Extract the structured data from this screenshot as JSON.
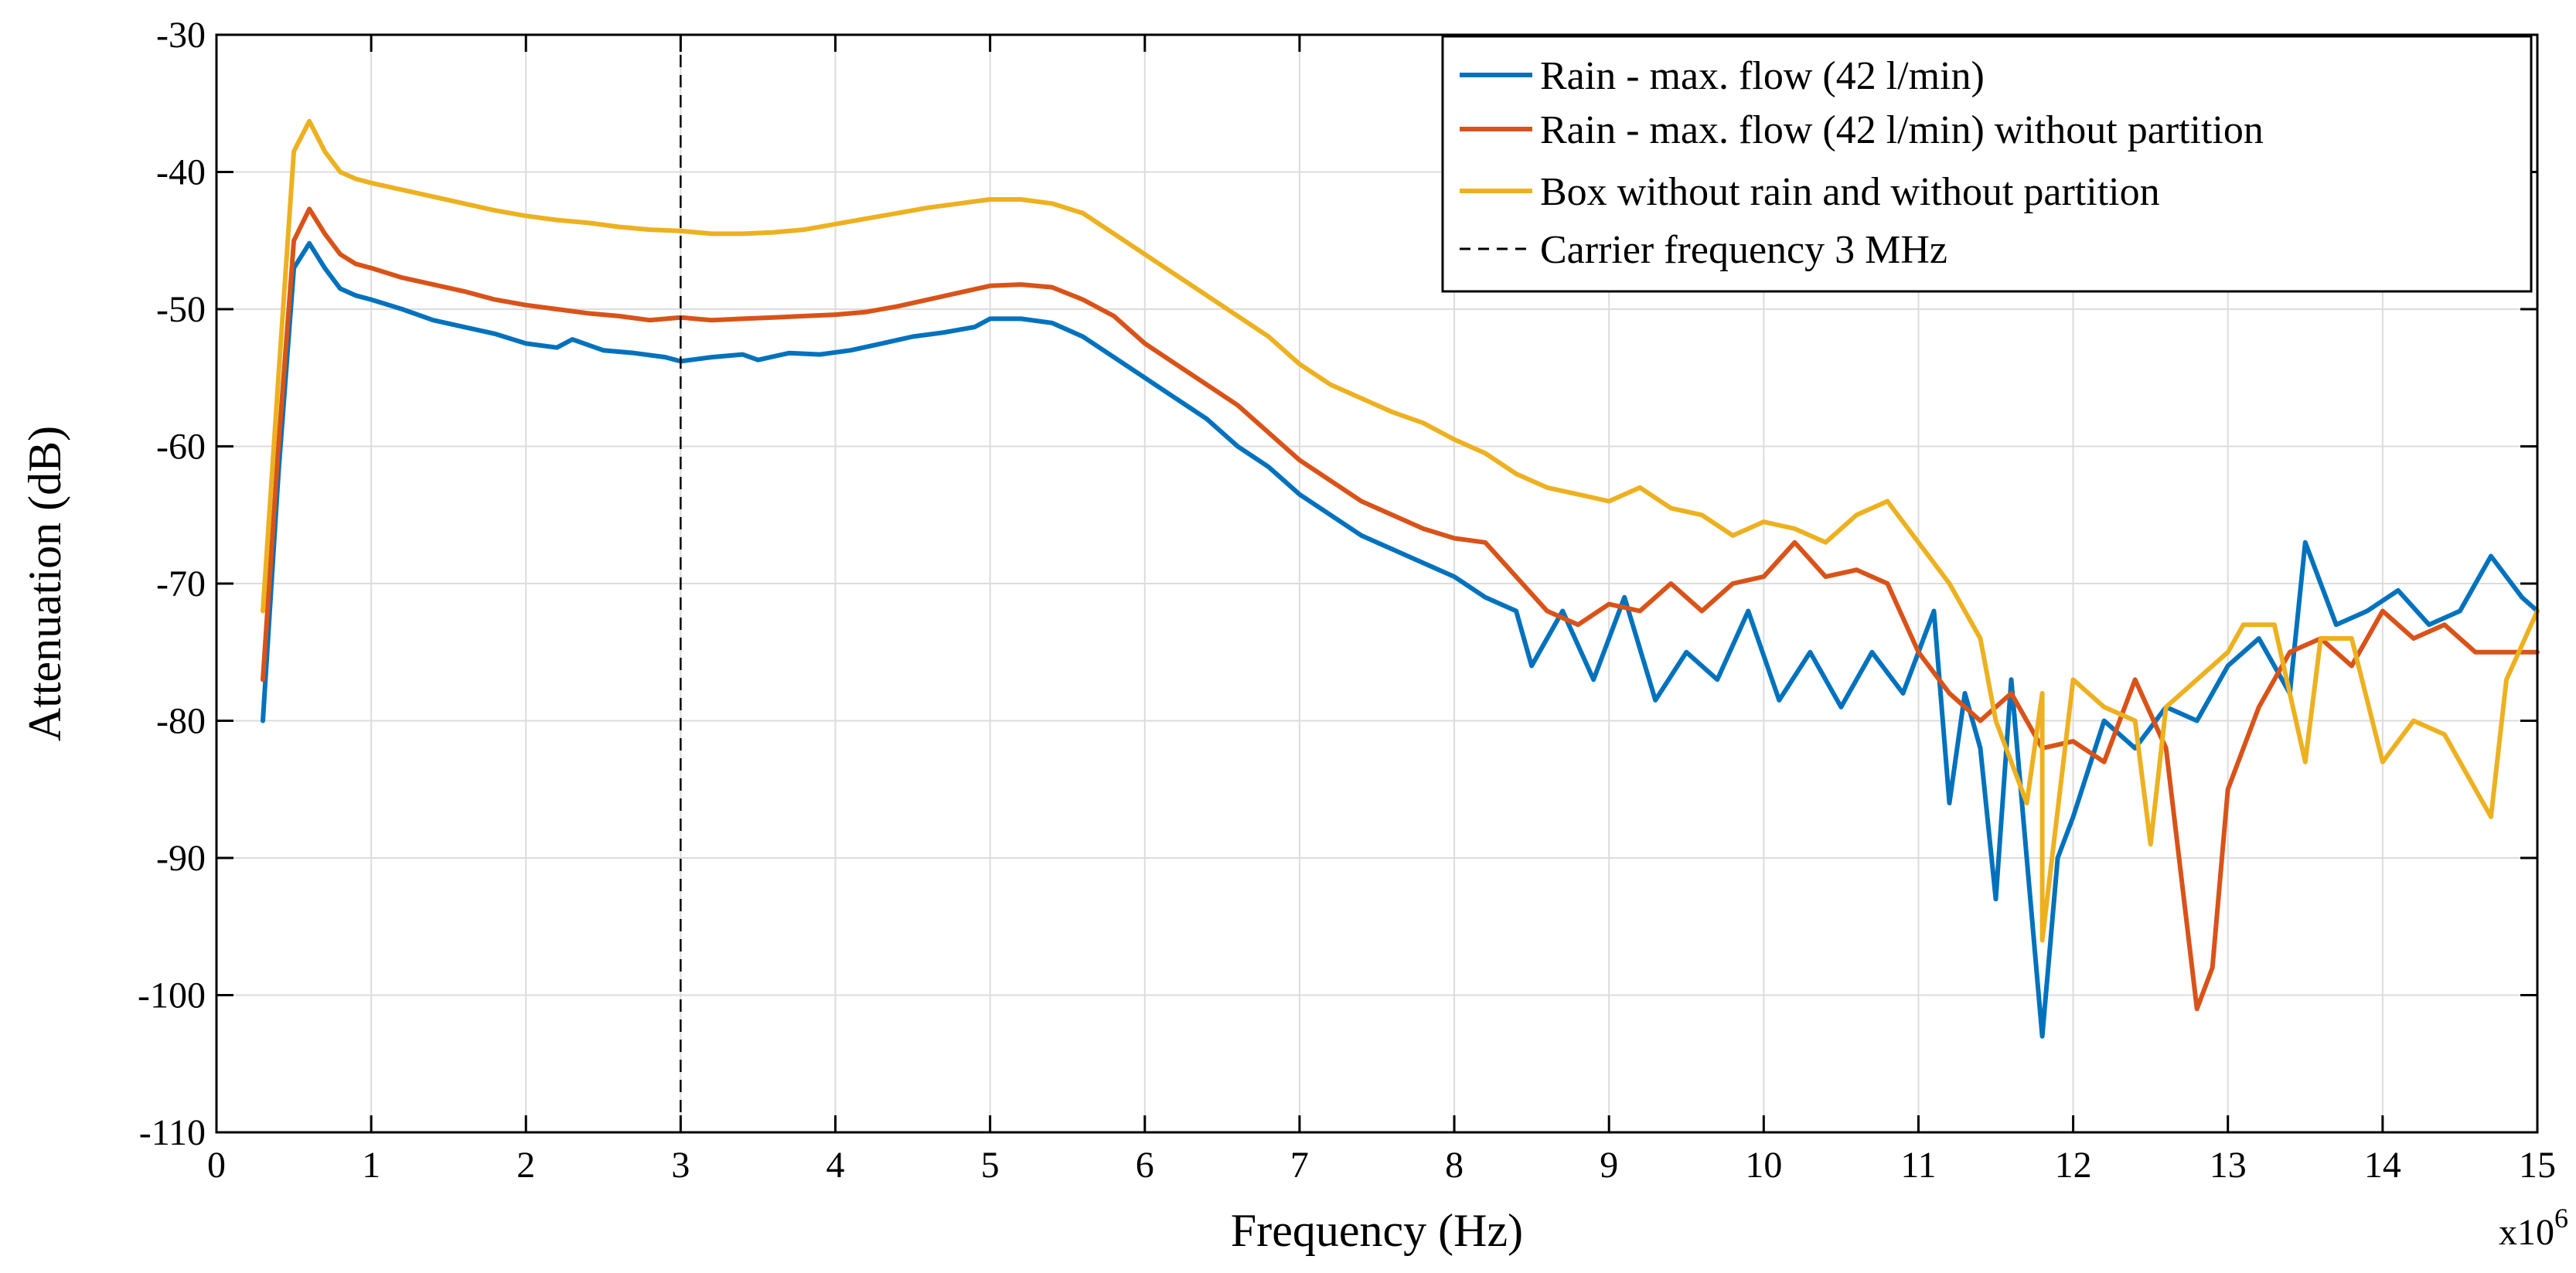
{
  "chart_data": {
    "type": "line",
    "title": "",
    "xlabel": "Frequency (Hz)",
    "ylabel": "Attenuation (dB)",
    "x_multiplier": "x10",
    "x_multiplier_exponent": "6",
    "xlim": [
      0,
      15
    ],
    "ylim": [
      -110,
      -30
    ],
    "xticks": [
      0,
      1,
      2,
      3,
      4,
      5,
      6,
      7,
      8,
      9,
      10,
      11,
      12,
      13,
      14,
      15
    ],
    "xtick_labels": [
      "0",
      "1",
      "2",
      "3",
      "4",
      "5",
      "6",
      "7",
      "8",
      "9",
      "10",
      "11",
      "12",
      "13",
      "14",
      "15"
    ],
    "yticks": [
      -30,
      -40,
      -50,
      -60,
      -70,
      -80,
      -90,
      -100,
      -110
    ],
    "ytick_labels": [
      "-30",
      "-40",
      "-50",
      "-60",
      "-70",
      "-80",
      "-90",
      "-100",
      "-110"
    ],
    "grid": true,
    "legend_position": "top-right",
    "vline": {
      "x": 3,
      "label": "Carrier frequency 3 MHz",
      "style": "dashed",
      "color": "#000000"
    },
    "series": [
      {
        "name": "Rain - max. flow (42 l/min)",
        "color": "#0072BD",
        "points": [
          [
            0.3,
            -80
          ],
          [
            0.4,
            -62
          ],
          [
            0.5,
            -47
          ],
          [
            0.6,
            -45.2
          ],
          [
            0.7,
            -47
          ],
          [
            0.8,
            -48.5
          ],
          [
            0.9,
            -49
          ],
          [
            1.0,
            -49.3
          ],
          [
            1.2,
            -50
          ],
          [
            1.4,
            -50.8
          ],
          [
            1.6,
            -51.3
          ],
          [
            1.8,
            -51.8
          ],
          [
            2.0,
            -52.5
          ],
          [
            2.2,
            -52.8
          ],
          [
            2.3,
            -52.2
          ],
          [
            2.5,
            -53
          ],
          [
            2.7,
            -53.2
          ],
          [
            2.9,
            -53.5
          ],
          [
            3.0,
            -53.8
          ],
          [
            3.2,
            -53.5
          ],
          [
            3.4,
            -53.3
          ],
          [
            3.5,
            -53.7
          ],
          [
            3.7,
            -53.2
          ],
          [
            3.9,
            -53.3
          ],
          [
            4.1,
            -53
          ],
          [
            4.3,
            -52.5
          ],
          [
            4.5,
            -52
          ],
          [
            4.7,
            -51.7
          ],
          [
            4.9,
            -51.3
          ],
          [
            5.0,
            -50.7
          ],
          [
            5.2,
            -50.7
          ],
          [
            5.4,
            -51
          ],
          [
            5.6,
            -52
          ],
          [
            5.8,
            -53.5
          ],
          [
            6.0,
            -55
          ],
          [
            6.2,
            -56.5
          ],
          [
            6.4,
            -58
          ],
          [
            6.6,
            -60
          ],
          [
            6.8,
            -61.5
          ],
          [
            7.0,
            -63.5
          ],
          [
            7.2,
            -65
          ],
          [
            7.4,
            -66.5
          ],
          [
            7.6,
            -67.5
          ],
          [
            7.8,
            -68.5
          ],
          [
            8.0,
            -69.5
          ],
          [
            8.2,
            -71
          ],
          [
            8.4,
            -72
          ],
          [
            8.5,
            -76
          ],
          [
            8.7,
            -72
          ],
          [
            8.9,
            -77
          ],
          [
            9.1,
            -71
          ],
          [
            9.3,
            -78.5
          ],
          [
            9.5,
            -75
          ],
          [
            9.7,
            -77
          ],
          [
            9.9,
            -72
          ],
          [
            10.1,
            -78.5
          ],
          [
            10.3,
            -75
          ],
          [
            10.5,
            -79
          ],
          [
            10.7,
            -75
          ],
          [
            10.9,
            -78
          ],
          [
            11.1,
            -72
          ],
          [
            11.2,
            -86
          ],
          [
            11.3,
            -78
          ],
          [
            11.4,
            -82
          ],
          [
            11.5,
            -93
          ],
          [
            11.6,
            -77
          ],
          [
            11.8,
            -103
          ],
          [
            11.9,
            -90
          ],
          [
            12.0,
            -87
          ],
          [
            12.2,
            -80
          ],
          [
            12.4,
            -82
          ],
          [
            12.6,
            -79
          ],
          [
            12.8,
            -80
          ],
          [
            13.0,
            -76
          ],
          [
            13.2,
            -74
          ],
          [
            13.4,
            -78
          ],
          [
            13.5,
            -67
          ],
          [
            13.7,
            -73
          ],
          [
            13.9,
            -72
          ],
          [
            14.1,
            -70.5
          ],
          [
            14.3,
            -73
          ],
          [
            14.5,
            -72
          ],
          [
            14.7,
            -68
          ],
          [
            14.9,
            -71
          ],
          [
            15.0,
            -72
          ]
        ]
      },
      {
        "name": "Rain - max. flow (42 l/min) without partition",
        "color": "#D95319",
        "points": [
          [
            0.3,
            -77
          ],
          [
            0.4,
            -60
          ],
          [
            0.5,
            -45
          ],
          [
            0.6,
            -42.7
          ],
          [
            0.7,
            -44.5
          ],
          [
            0.8,
            -46
          ],
          [
            0.9,
            -46.7
          ],
          [
            1.0,
            -47
          ],
          [
            1.2,
            -47.7
          ],
          [
            1.4,
            -48.2
          ],
          [
            1.6,
            -48.7
          ],
          [
            1.8,
            -49.3
          ],
          [
            2.0,
            -49.7
          ],
          [
            2.2,
            -50
          ],
          [
            2.4,
            -50.3
          ],
          [
            2.6,
            -50.5
          ],
          [
            2.8,
            -50.8
          ],
          [
            3.0,
            -50.6
          ],
          [
            3.2,
            -50.8
          ],
          [
            3.4,
            -50.7
          ],
          [
            3.6,
            -50.6
          ],
          [
            3.8,
            -50.5
          ],
          [
            4.0,
            -50.4
          ],
          [
            4.2,
            -50.2
          ],
          [
            4.4,
            -49.8
          ],
          [
            4.6,
            -49.3
          ],
          [
            4.8,
            -48.8
          ],
          [
            5.0,
            -48.3
          ],
          [
            5.2,
            -48.2
          ],
          [
            5.4,
            -48.4
          ],
          [
            5.6,
            -49.3
          ],
          [
            5.8,
            -50.5
          ],
          [
            6.0,
            -52.5
          ],
          [
            6.2,
            -54
          ],
          [
            6.4,
            -55.5
          ],
          [
            6.6,
            -57
          ],
          [
            6.8,
            -59
          ],
          [
            7.0,
            -61
          ],
          [
            7.2,
            -62.5
          ],
          [
            7.4,
            -64
          ],
          [
            7.6,
            -65
          ],
          [
            7.8,
            -66
          ],
          [
            8.0,
            -66.7
          ],
          [
            8.2,
            -67
          ],
          [
            8.4,
            -69.5
          ],
          [
            8.6,
            -72
          ],
          [
            8.8,
            -73
          ],
          [
            9.0,
            -71.5
          ],
          [
            9.2,
            -72
          ],
          [
            9.4,
            -70
          ],
          [
            9.6,
            -72
          ],
          [
            9.8,
            -70
          ],
          [
            10.0,
            -69.5
          ],
          [
            10.2,
            -67
          ],
          [
            10.4,
            -69.5
          ],
          [
            10.6,
            -69
          ],
          [
            10.8,
            -70
          ],
          [
            11.0,
            -75
          ],
          [
            11.2,
            -78
          ],
          [
            11.4,
            -80
          ],
          [
            11.6,
            -78
          ],
          [
            11.8,
            -82
          ],
          [
            12.0,
            -81.5
          ],
          [
            12.2,
            -83
          ],
          [
            12.4,
            -77
          ],
          [
            12.6,
            -82
          ],
          [
            12.8,
            -101
          ],
          [
            12.9,
            -98
          ],
          [
            13.0,
            -85
          ],
          [
            13.2,
            -79
          ],
          [
            13.4,
            -75
          ],
          [
            13.6,
            -74
          ],
          [
            13.8,
            -76
          ],
          [
            14.0,
            -72
          ],
          [
            14.2,
            -74
          ],
          [
            14.4,
            -73
          ],
          [
            14.6,
            -75
          ],
          [
            14.8,
            -75
          ],
          [
            15.0,
            -75
          ]
        ]
      },
      {
        "name": "Box without rain and without partition",
        "color": "#EDB120",
        "points": [
          [
            0.3,
            -72
          ],
          [
            0.4,
            -55
          ],
          [
            0.5,
            -38.5
          ],
          [
            0.6,
            -36.3
          ],
          [
            0.7,
            -38.5
          ],
          [
            0.8,
            -40
          ],
          [
            0.9,
            -40.5
          ],
          [
            1.0,
            -40.8
          ],
          [
            1.2,
            -41.3
          ],
          [
            1.4,
            -41.8
          ],
          [
            1.6,
            -42.3
          ],
          [
            1.8,
            -42.8
          ],
          [
            2.0,
            -43.2
          ],
          [
            2.2,
            -43.5
          ],
          [
            2.4,
            -43.7
          ],
          [
            2.6,
            -44
          ],
          [
            2.8,
            -44.2
          ],
          [
            3.0,
            -44.3
          ],
          [
            3.2,
            -44.5
          ],
          [
            3.4,
            -44.5
          ],
          [
            3.6,
            -44.4
          ],
          [
            3.8,
            -44.2
          ],
          [
            4.0,
            -43.8
          ],
          [
            4.2,
            -43.4
          ],
          [
            4.4,
            -43
          ],
          [
            4.6,
            -42.6
          ],
          [
            4.8,
            -42.3
          ],
          [
            5.0,
            -42
          ],
          [
            5.2,
            -42
          ],
          [
            5.4,
            -42.3
          ],
          [
            5.6,
            -43
          ],
          [
            5.8,
            -44.5
          ],
          [
            6.0,
            -46
          ],
          [
            6.2,
            -47.5
          ],
          [
            6.4,
            -49
          ],
          [
            6.6,
            -50.5
          ],
          [
            6.8,
            -52
          ],
          [
            7.0,
            -54
          ],
          [
            7.2,
            -55.5
          ],
          [
            7.4,
            -56.5
          ],
          [
            7.6,
            -57.5
          ],
          [
            7.8,
            -58.3
          ],
          [
            8.0,
            -59.5
          ],
          [
            8.2,
            -60.5
          ],
          [
            8.4,
            -62
          ],
          [
            8.6,
            -63
          ],
          [
            8.8,
            -63.5
          ],
          [
            9.0,
            -64
          ],
          [
            9.2,
            -63
          ],
          [
            9.4,
            -64.5
          ],
          [
            9.6,
            -65
          ],
          [
            9.8,
            -66.5
          ],
          [
            10.0,
            -65.5
          ],
          [
            10.2,
            -66
          ],
          [
            10.4,
            -67
          ],
          [
            10.6,
            -65
          ],
          [
            10.8,
            -64
          ],
          [
            11.0,
            -67
          ],
          [
            11.2,
            -70
          ],
          [
            11.4,
            -74
          ],
          [
            11.5,
            -80
          ],
          [
            11.7,
            -86
          ],
          [
            11.8,
            -78
          ],
          [
            11.8,
            -96
          ],
          [
            12.0,
            -77
          ],
          [
            12.2,
            -79
          ],
          [
            12.4,
            -80
          ],
          [
            12.5,
            -89
          ],
          [
            12.6,
            -79
          ],
          [
            12.8,
            -77
          ],
          [
            13.0,
            -75
          ],
          [
            13.1,
            -73
          ],
          [
            13.3,
            -73
          ],
          [
            13.5,
            -83
          ],
          [
            13.6,
            -74
          ],
          [
            13.8,
            -74
          ],
          [
            14.0,
            -83
          ],
          [
            14.2,
            -80
          ],
          [
            14.4,
            -81
          ],
          [
            14.6,
            -85
          ],
          [
            14.7,
            -87
          ],
          [
            14.8,
            -77
          ],
          [
            15.0,
            -72
          ]
        ]
      }
    ]
  }
}
